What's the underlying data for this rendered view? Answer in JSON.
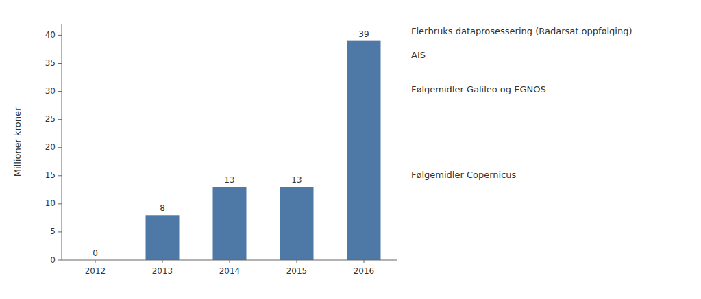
{
  "chart_data": {
    "type": "bar",
    "categories": [
      "2012",
      "2013",
      "2014",
      "2015",
      "2016"
    ],
    "values": [
      0,
      8,
      13,
      13,
      39
    ],
    "color": "#4e79a7",
    "ylabel": "Millioner kroner",
    "ylim": [
      0,
      42
    ],
    "yticks": [
      0,
      5,
      10,
      15,
      20,
      25,
      30,
      35,
      40
    ],
    "grid": false,
    "data_labels": true,
    "annotations": [
      "Flerbruks dataprosessering (Radarsat oppfølging)",
      "AIS",
      "Følgemidler Galileo og EGNOS",
      "Følgemidler Copernicus"
    ]
  }
}
